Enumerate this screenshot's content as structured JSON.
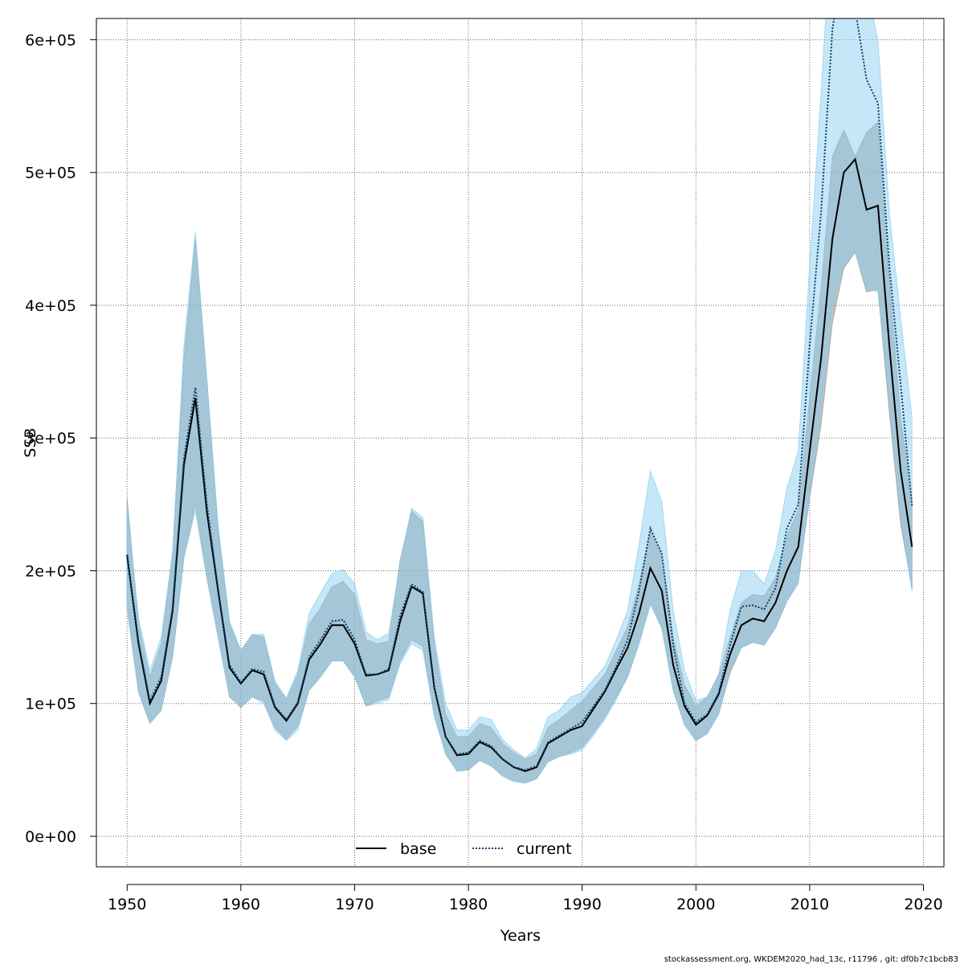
{
  "chart_data": {
    "type": "line",
    "title": "",
    "xlabel": "Years",
    "ylabel": "SSB",
    "xlim": [
      1947.3,
      2021.8
    ],
    "ylim": [
      -23000,
      616000
    ],
    "x_ticks": [
      1950,
      1960,
      1970,
      1980,
      1990,
      2000,
      2010,
      2020
    ],
    "x_tick_labels": [
      "1950",
      "1960",
      "1970",
      "1980",
      "1990",
      "2000",
      "2010",
      "2020"
    ],
    "y_ticks": [
      0,
      100000,
      200000,
      300000,
      400000,
      500000,
      600000
    ],
    "y_tick_labels": [
      "0e+00",
      "1e+05",
      "2e+05",
      "3e+05",
      "4e+05",
      "5e+05",
      "6e+05"
    ],
    "grid": true,
    "legend_position": "bottom-center",
    "x": [
      1950,
      1951,
      1952,
      1953,
      1954,
      1955,
      1956,
      1957,
      1958,
      1959,
      1960,
      1961,
      1962,
      1963,
      1964,
      1965,
      1966,
      1967,
      1968,
      1969,
      1970,
      1971,
      1972,
      1973,
      1974,
      1975,
      1976,
      1977,
      1978,
      1979,
      1980,
      1981,
      1982,
      1983,
      1984,
      1985,
      1986,
      1987,
      1988,
      1989,
      1990,
      1991,
      1992,
      1993,
      1994,
      1995,
      1996,
      1997,
      1998,
      1999,
      2000,
      2001,
      2002,
      2003,
      2004,
      2005,
      2006,
      2007,
      2008,
      2009,
      2010,
      2011,
      2012,
      2013,
      2014,
      2015,
      2016,
      2017,
      2018,
      2019
    ],
    "series": [
      {
        "name": "base",
        "color": "#000000",
        "line_style": "solid",
        "band_color": "#9a9a9a",
        "values": [
          212000,
          145000,
          100000,
          117000,
          170000,
          280000,
          330000,
          245000,
          185000,
          127000,
          115000,
          125000,
          122000,
          97000,
          87000,
          100000,
          133000,
          145000,
          159000,
          159000,
          145000,
          121000,
          122000,
          125000,
          162000,
          188000,
          183000,
          112000,
          75000,
          61000,
          62000,
          71000,
          67000,
          58000,
          52000,
          49000,
          52000,
          70000,
          75000,
          80000,
          83000,
          96000,
          109000,
          126000,
          142000,
          168000,
          202000,
          185000,
          129000,
          98000,
          84000,
          91000,
          107000,
          137000,
          159000,
          164000,
          162000,
          176000,
          200000,
          218000,
          290000,
          360000,
          450000,
          500000,
          510000,
          472000,
          475000,
          370000,
          275000,
          218000
        ],
        "lower": [
          175000,
          110000,
          85000,
          95000,
          135000,
          210000,
          250000,
          195000,
          150000,
          105000,
          97000,
          105000,
          102000,
          82000,
          73000,
          83000,
          110000,
          120000,
          132000,
          132000,
          120000,
          98000,
          102000,
          105000,
          132000,
          148000,
          143000,
          92000,
          62000,
          49000,
          50000,
          57000,
          53000,
          46000,
          42000,
          40000,
          44000,
          56000,
          60000,
          63000,
          67000,
          78000,
          90000,
          105000,
          120000,
          145000,
          175000,
          158000,
          110000,
          84000,
          72000,
          78000,
          92000,
          123000,
          142000,
          146000,
          144000,
          157000,
          177000,
          192000,
          255000,
          310000,
          387000,
          428000,
          440000,
          410000,
          412000,
          320000,
          235000,
          186000
        ],
        "upper": [
          255000,
          160000,
          120000,
          145000,
          210000,
          360000,
          450000,
          345000,
          230000,
          160000,
          140000,
          152000,
          150000,
          115000,
          103000,
          122000,
          160000,
          172000,
          188000,
          192000,
          182000,
          148000,
          145000,
          147000,
          208000,
          245000,
          237000,
          145000,
          92000,
          75000,
          75000,
          85000,
          82000,
          70000,
          63000,
          58000,
          62000,
          82000,
          88000,
          95000,
          102000,
          112000,
          122000,
          140000,
          158000,
          190000,
          230000,
          212000,
          150000,
          114000,
          98000,
          105000,
          121000,
          150000,
          176000,
          182000,
          181000,
          195000,
          226000,
          246000,
          330000,
          413000,
          512000,
          532000,
          512000,
          530000,
          538000,
          420000,
          315000,
          253000
        ]
      },
      {
        "name": "current",
        "color": "#0b3f6e",
        "line_style": "dotted",
        "band_color": "#87cdee",
        "values": [
          211000,
          147000,
          102000,
          120000,
          172000,
          285000,
          338000,
          251000,
          186000,
          129000,
          116000,
          126000,
          124000,
          98000,
          88000,
          101000,
          135000,
          148000,
          162000,
          163000,
          148000,
          122000,
          122000,
          126000,
          166000,
          190000,
          184000,
          112000,
          75000,
          62000,
          63000,
          72000,
          68000,
          58000,
          52000,
          50000,
          53000,
          71000,
          76000,
          81000,
          86000,
          98000,
          110000,
          128000,
          148000,
          185000,
          232000,
          213000,
          144000,
          100000,
          86000,
          92000,
          108000,
          144000,
          173000,
          174000,
          171000,
          187000,
          232000,
          250000,
          370000,
          470000,
          608000,
          660000,
          623000,
          570000,
          552000,
          430000,
          340000,
          249000
        ],
        "lower": [
          170000,
          108000,
          85000,
          95000,
          135000,
          210000,
          245000,
          195000,
          150000,
          105000,
          97000,
          105000,
          100000,
          80000,
          72000,
          80000,
          110000,
          120000,
          132000,
          132000,
          120000,
          98000,
          100000,
          103000,
          130000,
          145000,
          140000,
          90000,
          62000,
          49000,
          50000,
          57000,
          53000,
          45000,
          41000,
          40000,
          43000,
          56000,
          60000,
          62000,
          65000,
          76000,
          88000,
          103000,
          120000,
          145000,
          175000,
          156000,
          110000,
          84000,
          72000,
          77000,
          92000,
          125000,
          142000,
          146000,
          144000,
          157000,
          177000,
          190000,
          258000,
          324000,
          400000,
          430000,
          440000,
          413000,
          410000,
          330000,
          240000,
          185000
        ],
        "upper": [
          250000,
          165000,
          125000,
          150000,
          215000,
          370000,
          455000,
          345000,
          235000,
          162000,
          140000,
          152000,
          152000,
          117000,
          104000,
          125000,
          168000,
          183000,
          198000,
          201000,
          190000,
          154000,
          148000,
          153000,
          205000,
          247000,
          240000,
          150000,
          100000,
          80000,
          80000,
          90000,
          88000,
          73000,
          65000,
          59000,
          66000,
          90000,
          95000,
          105000,
          108000,
          118000,
          128000,
          148000,
          170000,
          220000,
          275000,
          252000,
          170000,
          125000,
          102000,
          105000,
          122000,
          170000,
          200000,
          200000,
          190000,
          215000,
          262000,
          290000,
          430000,
          560000,
          700000,
          760000,
          700000,
          640000,
          600000,
          470000,
          390000,
          315000
        ]
      }
    ],
    "footer": "stockassessment.org, WKDEM2020_had_13c, r11796 , git: df0b7c1bcb83"
  }
}
